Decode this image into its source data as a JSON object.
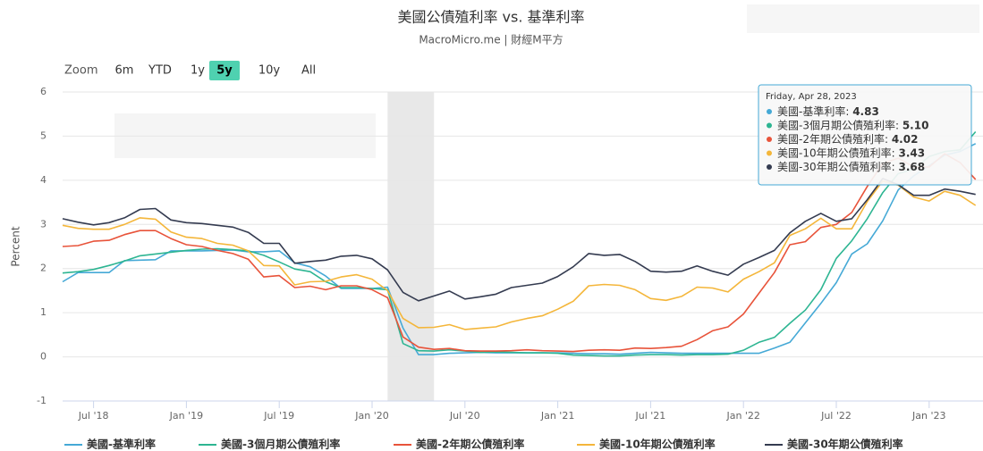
{
  "chart_data": {
    "type": "line",
    "title": "美國公債殖利率 vs. 基準利率",
    "subtitle": "MacroMicro.me | 財經M平方",
    "y_label": "Percent",
    "range_selector": {
      "label": "Zoom",
      "buttons": [
        "6m",
        "YTD",
        "1y",
        "5y",
        "10y",
        "All"
      ],
      "selected": "5y"
    },
    "plot_band": [
      "2020-02",
      "2020-05"
    ],
    "x": [
      "2018-05",
      "2018-06",
      "2018-07",
      "2018-08",
      "2018-09",
      "2018-10",
      "2018-11",
      "2018-12",
      "2019-01",
      "2019-02",
      "2019-03",
      "2019-04",
      "2019-05",
      "2019-06",
      "2019-07",
      "2019-08",
      "2019-09",
      "2019-10",
      "2019-11",
      "2019-12",
      "2020-01",
      "2020-02",
      "2020-03",
      "2020-04",
      "2020-05",
      "2020-06",
      "2020-07",
      "2020-08",
      "2020-09",
      "2020-10",
      "2020-11",
      "2020-12",
      "2021-01",
      "2021-02",
      "2021-03",
      "2021-04",
      "2021-05",
      "2021-06",
      "2021-07",
      "2021-08",
      "2021-09",
      "2021-10",
      "2021-11",
      "2021-12",
      "2022-01",
      "2022-02",
      "2022-03",
      "2022-04",
      "2022-05",
      "2022-06",
      "2022-07",
      "2022-08",
      "2022-09",
      "2022-10",
      "2022-11",
      "2022-12",
      "2023-01",
      "2023-02",
      "2023-03",
      "2023-04"
    ],
    "xticks": [
      {
        "value": "2018-07",
        "label": "Jul '18"
      },
      {
        "value": "2019-01",
        "label": "Jan '19"
      },
      {
        "value": "2019-07",
        "label": "Jul '19"
      },
      {
        "value": "2020-01",
        "label": "Jan '20"
      },
      {
        "value": "2020-07",
        "label": "Jul '20"
      },
      {
        "value": "2021-01",
        "label": "Jan '21"
      },
      {
        "value": "2021-07",
        "label": "Jul '21"
      },
      {
        "value": "2022-01",
        "label": "Jan '22"
      },
      {
        "value": "2022-07",
        "label": "Jul '22"
      },
      {
        "value": "2023-01",
        "label": "Jan '23"
      }
    ],
    "ylim": [
      -1,
      6
    ],
    "yticks": [
      -1,
      0,
      1,
      2,
      3,
      4,
      5,
      6
    ],
    "grid": true,
    "legend": "bottom",
    "series": [
      {
        "name": "美國-基準利率",
        "color": "#45a9d6",
        "values": [
          1.7,
          1.91,
          1.91,
          1.91,
          2.18,
          2.19,
          2.2,
          2.4,
          2.4,
          2.4,
          2.41,
          2.42,
          2.38,
          2.38,
          2.4,
          2.13,
          2.04,
          1.83,
          1.55,
          1.55,
          1.55,
          1.58,
          0.65,
          0.05,
          0.05,
          0.08,
          0.09,
          0.1,
          0.09,
          0.09,
          0.09,
          0.09,
          0.09,
          0.08,
          0.07,
          0.07,
          0.06,
          0.08,
          0.1,
          0.09,
          0.08,
          0.08,
          0.08,
          0.08,
          0.08,
          0.08,
          0.2,
          0.33,
          0.77,
          1.21,
          1.68,
          2.33,
          2.56,
          3.08,
          3.78,
          4.1,
          4.33,
          4.57,
          4.65,
          4.83
        ]
      },
      {
        "name": "美國-3個月期公債殖利率",
        "color": "#2db592",
        "values": [
          1.9,
          1.93,
          1.98,
          2.07,
          2.17,
          2.29,
          2.33,
          2.37,
          2.41,
          2.44,
          2.45,
          2.43,
          2.4,
          2.3,
          2.15,
          1.99,
          1.93,
          1.7,
          1.57,
          1.57,
          1.55,
          1.52,
          0.3,
          0.14,
          0.13,
          0.16,
          0.13,
          0.1,
          0.11,
          0.1,
          0.09,
          0.09,
          0.08,
          0.04,
          0.03,
          0.02,
          0.02,
          0.04,
          0.05,
          0.05,
          0.04,
          0.05,
          0.05,
          0.06,
          0.15,
          0.33,
          0.44,
          0.76,
          1.06,
          1.52,
          2.23,
          2.63,
          3.13,
          3.72,
          4.15,
          4.25,
          4.54,
          4.65,
          4.69,
          5.1
        ]
      },
      {
        "name": "美國-2年期公債殖利率",
        "color": "#e8533a",
        "values": [
          2.5,
          2.52,
          2.62,
          2.64,
          2.77,
          2.86,
          2.86,
          2.68,
          2.54,
          2.5,
          2.41,
          2.34,
          2.21,
          1.81,
          1.84,
          1.57,
          1.6,
          1.52,
          1.61,
          1.61,
          1.52,
          1.34,
          0.45,
          0.22,
          0.17,
          0.19,
          0.14,
          0.13,
          0.13,
          0.14,
          0.16,
          0.14,
          0.13,
          0.12,
          0.15,
          0.16,
          0.15,
          0.2,
          0.19,
          0.21,
          0.24,
          0.39,
          0.59,
          0.68,
          0.97,
          1.44,
          1.91,
          2.54,
          2.61,
          2.93,
          3.0,
          3.27,
          3.86,
          4.38,
          4.5,
          4.3,
          4.3,
          4.6,
          4.4,
          4.02
        ]
      },
      {
        "name": "美國-10年期公債殖利率",
        "color": "#f4b63a",
        "values": [
          2.98,
          2.91,
          2.89,
          2.89,
          3.0,
          3.15,
          3.12,
          2.83,
          2.71,
          2.68,
          2.57,
          2.53,
          2.4,
          2.07,
          2.06,
          1.63,
          1.7,
          1.71,
          1.81,
          1.86,
          1.76,
          1.5,
          0.87,
          0.66,
          0.67,
          0.73,
          0.62,
          0.65,
          0.68,
          0.79,
          0.87,
          0.93,
          1.08,
          1.26,
          1.61,
          1.64,
          1.62,
          1.52,
          1.32,
          1.28,
          1.37,
          1.58,
          1.56,
          1.47,
          1.76,
          1.93,
          2.13,
          2.75,
          2.9,
          3.14,
          2.9,
          2.9,
          3.52,
          3.98,
          3.89,
          3.62,
          3.53,
          3.75,
          3.66,
          3.43
        ]
      },
      {
        "name": "美國-30年期公債殖利率",
        "color": "#343b50",
        "values": [
          3.13,
          3.05,
          2.99,
          3.04,
          3.15,
          3.34,
          3.36,
          3.1,
          3.04,
          3.02,
          2.98,
          2.94,
          2.82,
          2.57,
          2.57,
          2.12,
          2.16,
          2.19,
          2.28,
          2.3,
          2.22,
          1.97,
          1.46,
          1.27,
          1.38,
          1.49,
          1.31,
          1.36,
          1.42,
          1.57,
          1.62,
          1.67,
          1.82,
          2.04,
          2.34,
          2.3,
          2.32,
          2.16,
          1.94,
          1.92,
          1.94,
          2.06,
          1.94,
          1.85,
          2.1,
          2.25,
          2.41,
          2.81,
          3.07,
          3.25,
          3.07,
          3.13,
          3.56,
          4.04,
          3.9,
          3.66,
          3.66,
          3.8,
          3.75,
          3.68
        ]
      }
    ],
    "tooltip": {
      "date": "Friday, Apr 28, 2023",
      "labels": [
        "美國-基準利率: ",
        "美國-3個月期公債殖利率: ",
        "美國-2年期公債殖利率: ",
        "美國-10年期公債殖利率: ",
        "美國-30年期公債殖利率: "
      ],
      "values": [
        4.83,
        5.1,
        4.02,
        3.43,
        3.68
      ],
      "value_labels": [
        "4.83",
        "5.10",
        "4.02",
        "3.43",
        "3.68"
      ]
    }
  }
}
